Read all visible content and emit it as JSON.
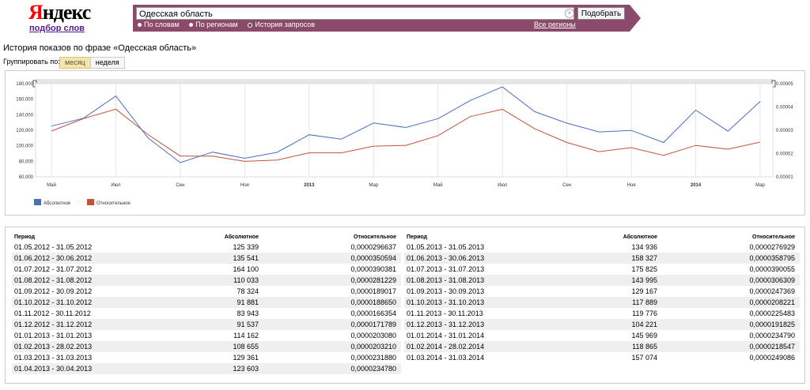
{
  "logo": {
    "brand": "Яндекс",
    "subtitle": "подбор слов"
  },
  "search": {
    "value": "Одесская область",
    "submit": "Подобрать",
    "clear_icon": "×"
  },
  "modes": [
    {
      "label": "По словам",
      "selected": false
    },
    {
      "label": "По регионам",
      "selected": false
    },
    {
      "label": "История запросов",
      "selected": true
    }
  ],
  "regions_link": "Все регионы",
  "page_title": "История показов по фразе «Одесская область»",
  "group": {
    "label": "Группировать по:",
    "month": "месяц",
    "week": "неделя",
    "selected": "месяц"
  },
  "colors": {
    "absolute": "#4a6ebf",
    "relative": "#c0533a",
    "header_bar": "#8b4a6a"
  },
  "chart_data": {
    "type": "line",
    "x_ticks": [
      "Май",
      "Июл",
      "Сен",
      "Ноя",
      "2013",
      "Мар",
      "Май",
      "Июл",
      "Сен",
      "Ноя",
      "2014",
      "Мар"
    ],
    "y_left_ticks": [
      "180,000",
      "160,000",
      "140,000",
      "120,000",
      "100,000",
      "80,000",
      "60,000"
    ],
    "y_left_range": [
      60000,
      180000
    ],
    "y_right_ticks": [
      "0.00005",
      "0.00004",
      "0.00003",
      "0.00002",
      "0.00001"
    ],
    "y_right_range": [
      1e-05,
      5e-05
    ],
    "legend_placement": "bottom-left",
    "series": [
      {
        "name": "Абсолютное",
        "axis": "left",
        "values": [
          125339,
          135541,
          164100,
          110033,
          78324,
          91881,
          83943,
          91537,
          114162,
          108655,
          129361,
          123603,
          134936,
          158327,
          175825,
          143995,
          129167,
          117889,
          119776,
          104221,
          145969,
          118865,
          157074
        ]
      },
      {
        "name": "Относительное",
        "axis": "right",
        "values": [
          2.96637e-05,
          3.50594e-05,
          3.90381e-05,
          2.81229e-05,
          1.89017e-05,
          1.8865e-05,
          1.66354e-05,
          1.71789e-05,
          2.0308e-05,
          2.0321e-05,
          2.3188e-05,
          2.3478e-05,
          2.76929e-05,
          3.58795e-05,
          3.90055e-05,
          3.06309e-05,
          2.47369e-05,
          2.08221e-05,
          2.25483e-05,
          1.91825e-05,
          2.3479e-05,
          2.18547e-05,
          2.49086e-05
        ]
      }
    ]
  },
  "table": {
    "headers": {
      "period": "Период",
      "absolute": "Абсолютное",
      "relative": "Относительное"
    },
    "left": [
      [
        "01.05.2012 - 31.05.2012",
        "125 339",
        "0,0000296637"
      ],
      [
        "01.06.2012 - 30.06.2012",
        "135 541",
        "0,0000350594"
      ],
      [
        "01.07.2012 - 31.07.2012",
        "164 100",
        "0,0000390381"
      ],
      [
        "01.08.2012 - 31.08.2012",
        "110 033",
        "0,0000281229"
      ],
      [
        "01.09.2012 - 30.09.2012",
        "78 324",
        "0,0000189017"
      ],
      [
        "01.10.2012 - 31.10.2012",
        "91 881",
        "0,0000188650"
      ],
      [
        "01.11.2012 - 30.11.2012",
        "83 943",
        "0,0000166354"
      ],
      [
        "01.12.2012 - 31.12.2012",
        "91 537",
        "0,0000171789"
      ],
      [
        "01.01.2013 - 31.01.2013",
        "114 162",
        "0,0000203080"
      ],
      [
        "01.02.2013 - 28.02.2013",
        "108 655",
        "0,0000203210"
      ],
      [
        "01.03.2013 - 31.03.2013",
        "129 361",
        "0,0000231880"
      ],
      [
        "01.04.2013 - 30.04.2013",
        "123 603",
        "0,0000234780"
      ]
    ],
    "right": [
      [
        "01.05.2013 - 31.05.2013",
        "134 936",
        "0,0000276929"
      ],
      [
        "01.06.2013 - 30.06.2013",
        "158 327",
        "0,0000358795"
      ],
      [
        "01.07.2013 - 31.07.2013",
        "175 825",
        "0,0000390055"
      ],
      [
        "01.08.2013 - 31.08.2013",
        "143 995",
        "0,0000306309"
      ],
      [
        "01.09.2013 - 30.09.2013",
        "129 167",
        "0,0000247369"
      ],
      [
        "01.10.2013 - 31.10.2013",
        "117 889",
        "0,0000208221"
      ],
      [
        "01.11.2013 - 30.11.2013",
        "119 776",
        "0,0000225483"
      ],
      [
        "01.12.2013 - 31.12.2013",
        "104 221",
        "0,0000191825"
      ],
      [
        "01.01.2014 - 31.01.2014",
        "145 969",
        "0,0000234790"
      ],
      [
        "01.02.2014 - 28.02.2014",
        "118 865",
        "0,0000218547"
      ],
      [
        "01.03.2014 - 31.03.2014",
        "157 074",
        "0,0000249086"
      ]
    ]
  }
}
